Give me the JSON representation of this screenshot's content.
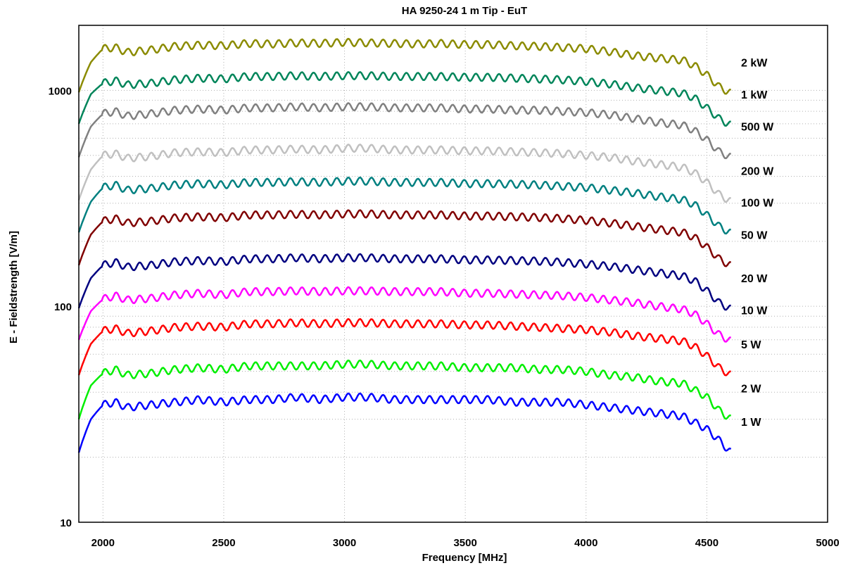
{
  "chart_data": {
    "type": "line",
    "title": "HA 9250-24   1 m Tip - EuT",
    "xlabel": "Frequency [MHz]",
    "ylabel": "E - Fieldstrength [V/m]",
    "xlim": [
      1900,
      5000
    ],
    "ylim": [
      10,
      2000
    ],
    "y_scale": "log",
    "grid": true,
    "legend": "right-end labels",
    "x_ticks": [
      "2000",
      "2500",
      "3000",
      "3500",
      "4000",
      "4500",
      "5000"
    ],
    "x_tick_values": [
      2000,
      2500,
      3000,
      3500,
      4000,
      4500,
      5000
    ],
    "y_ticks": [
      "10",
      "100",
      "1000"
    ],
    "y_tick_values": [
      10,
      100,
      1000
    ],
    "x": [
      1900,
      1950,
      2000,
      2050,
      2100,
      2200,
      2300,
      2400,
      2500,
      2600,
      2700,
      2800,
      2900,
      3000,
      3100,
      3200,
      3300,
      3400,
      3500,
      3600,
      3700,
      3800,
      3900,
      4000,
      4100,
      4200,
      4300,
      4400,
      4450,
      4500,
      4550,
      4600
    ],
    "series": [
      {
        "name": "2 kW",
        "color": "#8b8b00",
        "values": [
          980,
          1350,
          1560,
          1580,
          1500,
          1540,
          1600,
          1620,
          1610,
          1650,
          1640,
          1660,
          1650,
          1670,
          1660,
          1650,
          1640,
          1650,
          1630,
          1630,
          1610,
          1600,
          1580,
          1560,
          1510,
          1450,
          1410,
          1380,
          1300,
          1180,
          1040,
          970
        ]
      },
      {
        "name": "1 kW",
        "color": "#00855a",
        "values": [
          700,
          960,
          1080,
          1110,
          1060,
          1080,
          1120,
          1140,
          1130,
          1160,
          1160,
          1170,
          1160,
          1170,
          1170,
          1160,
          1160,
          1160,
          1150,
          1150,
          1140,
          1130,
          1120,
          1100,
          1070,
          1030,
          1000,
          970,
          920,
          830,
          740,
          690
        ]
      },
      {
        "name": "500 W",
        "color": "#808080",
        "values": [
          490,
          680,
          780,
          800,
          760,
          780,
          810,
          820,
          810,
          830,
          830,
          840,
          830,
          840,
          840,
          830,
          830,
          830,
          820,
          820,
          810,
          810,
          800,
          790,
          770,
          740,
          710,
          690,
          650,
          590,
          520,
          490
        ]
      },
      {
        "name": "200 W",
        "color": "#c0c0c0",
        "values": [
          310,
          430,
          500,
          510,
          485,
          495,
          515,
          520,
          515,
          530,
          530,
          535,
          530,
          540,
          540,
          530,
          530,
          530,
          525,
          525,
          520,
          515,
          510,
          500,
          490,
          470,
          455,
          440,
          415,
          375,
          330,
          305
        ]
      },
      {
        "name": "100 W",
        "color": "#008080",
        "values": [
          220,
          305,
          355,
          365,
          345,
          352,
          365,
          370,
          365,
          375,
          375,
          378,
          375,
          380,
          380,
          375,
          375,
          375,
          370,
          370,
          368,
          365,
          360,
          355,
          345,
          335,
          322,
          312,
          295,
          265,
          235,
          218
        ]
      },
      {
        "name": "50 W",
        "color": "#800000",
        "values": [
          155,
          215,
          248,
          255,
          243,
          248,
          257,
          260,
          257,
          265,
          265,
          267,
          265,
          268,
          268,
          265,
          265,
          265,
          262,
          262,
          260,
          258,
          255,
          250,
          243,
          235,
          227,
          220,
          208,
          188,
          166,
          154
        ]
      },
      {
        "name": "20 W",
        "color": "#000080",
        "values": [
          98,
          135,
          155,
          160,
          152,
          155,
          161,
          163,
          161,
          166,
          166,
          168,
          166,
          168,
          168,
          166,
          166,
          166,
          164,
          164,
          163,
          162,
          160,
          157,
          153,
          148,
          143,
          138,
          131,
          118,
          104,
          97
        ]
      },
      {
        "name": "10 W",
        "color": "#ff00ff",
        "values": [
          70,
          95,
          108,
          112,
          107,
          109,
          113,
          115,
          113,
          117,
          117,
          118,
          117,
          118,
          118,
          117,
          117,
          117,
          115,
          115,
          114,
          113,
          112,
          110,
          107,
          104,
          100,
          97,
          92,
          83,
          74,
          69
        ]
      },
      {
        "name": "5 W",
        "color": "#ff0000",
        "values": [
          48,
          67,
          77,
          79,
          75,
          77,
          80,
          81,
          80,
          83,
          83,
          84,
          83,
          84,
          84,
          83,
          83,
          83,
          82,
          82,
          81,
          80,
          79,
          78,
          76,
          73,
          71,
          69,
          65,
          59,
          52,
          48
        ]
      },
      {
        "name": "2 W",
        "color": "#00ee00",
        "values": [
          30,
          43,
          49,
          51,
          48,
          49,
          51,
          52,
          51,
          53,
          53,
          53,
          53,
          54,
          54,
          53,
          53,
          53,
          52,
          52,
          52,
          51,
          51,
          50,
          48,
          47,
          45,
          44,
          41,
          38,
          33,
          30
        ]
      },
      {
        "name": "1 W",
        "color": "#0000ff",
        "values": [
          21,
          30,
          35,
          36,
          34,
          35,
          36,
          37,
          36,
          37,
          37,
          38,
          37,
          38,
          38,
          37,
          37,
          37,
          37,
          37,
          36,
          36,
          36,
          35,
          34,
          33,
          32,
          31,
          29,
          27,
          24,
          21
        ]
      }
    ]
  }
}
